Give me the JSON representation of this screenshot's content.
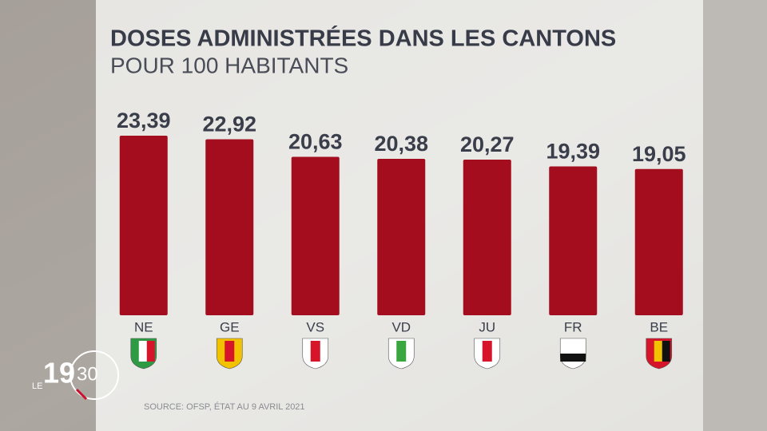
{
  "chart_data": {
    "type": "bar",
    "title": "DOSES ADMINISTRÉES DANS LES CANTONS",
    "subtitle": "POUR 100 HABITANTS",
    "categories": [
      "NE",
      "GE",
      "VS",
      "VD",
      "JU",
      "FR",
      "BE"
    ],
    "values": [
      23.39,
      22.92,
      20.63,
      20.38,
      20.27,
      19.39,
      19.05
    ],
    "value_labels": [
      "23,39",
      "22,92",
      "20,63",
      "20,38",
      "20,27",
      "19,39",
      "19,05"
    ],
    "color": "#a30d1e",
    "source": "SOURCE: OFSP, ÉTAT AU 9 AVRIL 2021"
  },
  "logo": {
    "prefix": "LE",
    "hour": "19",
    "minute": "30"
  }
}
